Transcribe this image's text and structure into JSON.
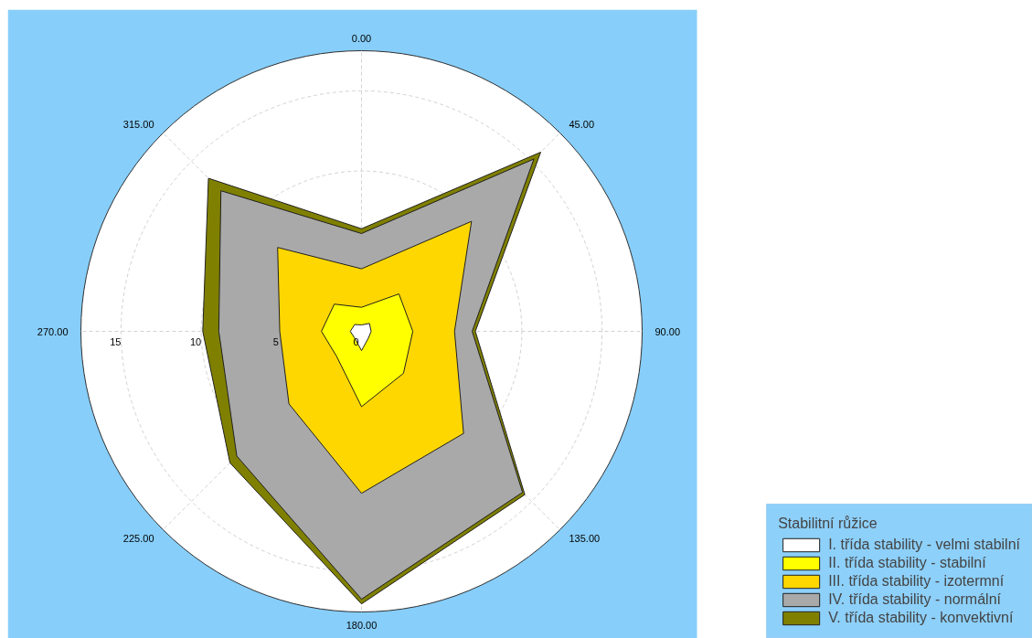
{
  "chart_data": {
    "type": "radar",
    "categories": [
      "0.00",
      "45.00",
      "90.00",
      "135.00",
      "180.00",
      "225.00",
      "270.00",
      "315.00"
    ],
    "ylim": [
      0,
      17.5
    ],
    "yticks": [
      0,
      5,
      10,
      15
    ],
    "grid": true,
    "legend": "bottom right",
    "legend_title": "Stabilitní růžice",
    "series": [
      {
        "name": "I. třída stability - velmi stabilní",
        "color": "#ffffff",
        "values": [
          0.4,
          0.7,
          0.6,
          0.6,
          1.2,
          0.6,
          0.7,
          0.6
        ]
      },
      {
        "name": "II. třída stability - stabilní",
        "color": "#ffff00",
        "values": [
          1.5,
          3.3,
          3.2,
          3.7,
          4.7,
          2.2,
          2.5,
          2.4
        ]
      },
      {
        "name": "III. třída stability - izotermní",
        "color": "#ffd700",
        "values": [
          3.9,
          9.7,
          5.8,
          9.0,
          10.1,
          6.4,
          5.1,
          7.4
        ]
      },
      {
        "name": "IV. třída stability - normální",
        "color": "#a9a9a9",
        "values": [
          6.1,
          15.2,
          6.9,
          14.2,
          16.7,
          11.0,
          8.9,
          12.4
        ]
      },
      {
        "name": "V. třída stability - konvektivní",
        "color": "#808000",
        "values": [
          6.4,
          15.8,
          7.1,
          14.4,
          17.0,
          11.6,
          9.9,
          13.5
        ]
      }
    ]
  }
}
